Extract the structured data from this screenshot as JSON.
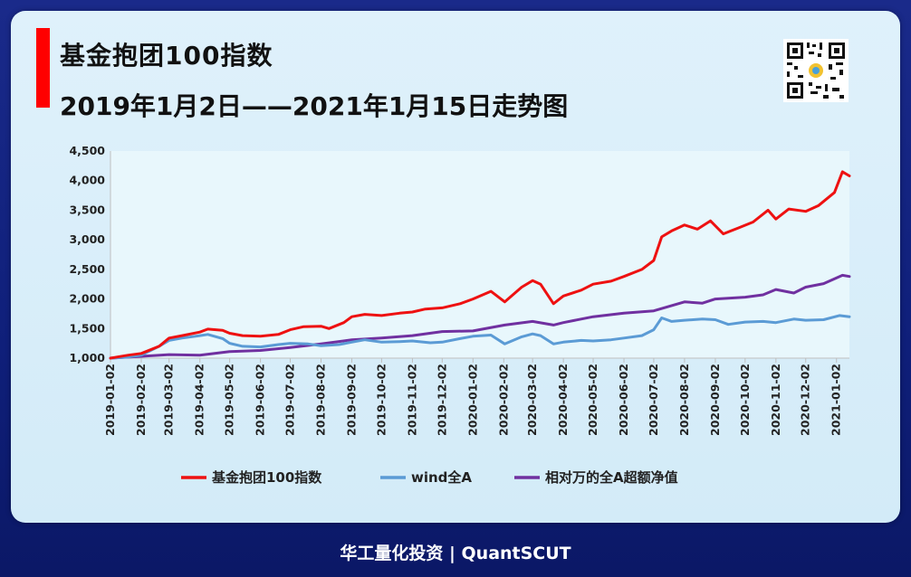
{
  "header": {
    "title": "基金抱团100指数",
    "subtitle": "2019年1月2日——2021年1月15日走势图"
  },
  "footer": {
    "text": "华工量化投资 | QuantSCUT"
  },
  "colors": {
    "series1": "#ee1111",
    "series2": "#5b9bd5",
    "series3": "#7030a0"
  },
  "chart_data": {
    "type": "line",
    "ylim": [
      1000,
      4500
    ],
    "y_ticks": [
      1000,
      1500,
      2000,
      2500,
      3000,
      3500,
      4000,
      4500
    ],
    "y_tick_labels": [
      "1,000",
      "1,500",
      "2,000",
      "2,500",
      "3,000",
      "3,500",
      "4,000",
      "4,500"
    ],
    "x_tick_labels": [
      "2019-01-02",
      "2019-02-02",
      "2019-03-02",
      "2019-04-02",
      "2019-05-02",
      "2019-06-02",
      "2019-07-02",
      "2019-08-02",
      "2019-09-02",
      "2019-10-02",
      "2019-11-02",
      "2019-12-02",
      "2020-01-02",
      "2020-02-02",
      "2020-03-02",
      "2020-04-02",
      "2020-05-02",
      "2020-06-02",
      "2020-07-02",
      "2020-08-02",
      "2020-09-02",
      "2020-10-02",
      "2020-11-02",
      "2020-12-02",
      "2021-01-02"
    ],
    "xlim": [
      "2019-01-02",
      "2021-01-15"
    ],
    "legend_position": "bottom",
    "grid": false,
    "series": [
      {
        "name": "基金抱团100指数",
        "points": [
          [
            "2019-01-02",
            1000
          ],
          [
            "2019-01-20",
            1050
          ],
          [
            "2019-02-02",
            1080
          ],
          [
            "2019-02-20",
            1200
          ],
          [
            "2019-03-02",
            1340
          ],
          [
            "2019-03-15",
            1380
          ],
          [
            "2019-04-02",
            1440
          ],
          [
            "2019-04-10",
            1490
          ],
          [
            "2019-04-25",
            1470
          ],
          [
            "2019-05-02",
            1420
          ],
          [
            "2019-05-15",
            1380
          ],
          [
            "2019-06-02",
            1370
          ],
          [
            "2019-06-20",
            1400
          ],
          [
            "2019-07-02",
            1480
          ],
          [
            "2019-07-15",
            1530
          ],
          [
            "2019-08-02",
            1540
          ],
          [
            "2019-08-10",
            1500
          ],
          [
            "2019-08-25",
            1600
          ],
          [
            "2019-09-02",
            1700
          ],
          [
            "2019-09-15",
            1740
          ],
          [
            "2019-10-02",
            1720
          ],
          [
            "2019-10-20",
            1760
          ],
          [
            "2019-11-02",
            1780
          ],
          [
            "2019-11-15",
            1830
          ],
          [
            "2019-12-02",
            1850
          ],
          [
            "2019-12-20",
            1920
          ],
          [
            "2020-01-02",
            2000
          ],
          [
            "2020-01-20",
            2130
          ],
          [
            "2020-02-03",
            1950
          ],
          [
            "2020-02-20",
            2200
          ],
          [
            "2020-03-02",
            2310
          ],
          [
            "2020-03-10",
            2250
          ],
          [
            "2020-03-23",
            1920
          ],
          [
            "2020-04-02",
            2050
          ],
          [
            "2020-04-20",
            2150
          ],
          [
            "2020-05-02",
            2250
          ],
          [
            "2020-05-20",
            2300
          ],
          [
            "2020-06-02",
            2380
          ],
          [
            "2020-06-20",
            2500
          ],
          [
            "2020-07-02",
            2650
          ],
          [
            "2020-07-10",
            3050
          ],
          [
            "2020-07-20",
            3150
          ],
          [
            "2020-08-02",
            3250
          ],
          [
            "2020-08-15",
            3180
          ],
          [
            "2020-08-28",
            3320
          ],
          [
            "2020-09-10",
            3100
          ],
          [
            "2020-09-25",
            3200
          ],
          [
            "2020-10-10",
            3300
          ],
          [
            "2020-10-25",
            3500
          ],
          [
            "2020-11-02",
            3350
          ],
          [
            "2020-11-15",
            3520
          ],
          [
            "2020-12-02",
            3480
          ],
          [
            "2020-12-15",
            3580
          ],
          [
            "2020-12-31",
            3800
          ],
          [
            "2021-01-08",
            4150
          ],
          [
            "2021-01-15",
            4080
          ]
        ]
      },
      {
        "name": "wind全A",
        "points": [
          [
            "2019-01-02",
            1000
          ],
          [
            "2019-01-20",
            1020
          ],
          [
            "2019-02-02",
            1050
          ],
          [
            "2019-02-20",
            1200
          ],
          [
            "2019-03-02",
            1300
          ],
          [
            "2019-03-15",
            1340
          ],
          [
            "2019-04-02",
            1380
          ],
          [
            "2019-04-10",
            1400
          ],
          [
            "2019-04-25",
            1330
          ],
          [
            "2019-05-02",
            1250
          ],
          [
            "2019-05-15",
            1200
          ],
          [
            "2019-06-02",
            1190
          ],
          [
            "2019-06-20",
            1230
          ],
          [
            "2019-07-02",
            1250
          ],
          [
            "2019-07-20",
            1240
          ],
          [
            "2019-08-02",
            1210
          ],
          [
            "2019-08-20",
            1230
          ],
          [
            "2019-09-02",
            1270
          ],
          [
            "2019-09-15",
            1310
          ],
          [
            "2019-10-02",
            1270
          ],
          [
            "2019-10-20",
            1280
          ],
          [
            "2019-11-02",
            1290
          ],
          [
            "2019-11-20",
            1260
          ],
          [
            "2019-12-02",
            1270
          ],
          [
            "2019-12-20",
            1330
          ],
          [
            "2020-01-02",
            1370
          ],
          [
            "2020-01-20",
            1390
          ],
          [
            "2020-02-03",
            1240
          ],
          [
            "2020-02-20",
            1360
          ],
          [
            "2020-03-02",
            1410
          ],
          [
            "2020-03-10",
            1380
          ],
          [
            "2020-03-23",
            1240
          ],
          [
            "2020-04-02",
            1270
          ],
          [
            "2020-04-20",
            1300
          ],
          [
            "2020-05-02",
            1290
          ],
          [
            "2020-05-20",
            1310
          ],
          [
            "2020-06-02",
            1340
          ],
          [
            "2020-06-20",
            1380
          ],
          [
            "2020-07-02",
            1480
          ],
          [
            "2020-07-10",
            1680
          ],
          [
            "2020-07-20",
            1620
          ],
          [
            "2020-08-02",
            1640
          ],
          [
            "2020-08-20",
            1660
          ],
          [
            "2020-09-02",
            1650
          ],
          [
            "2020-09-15",
            1570
          ],
          [
            "2020-10-02",
            1610
          ],
          [
            "2020-10-20",
            1620
          ],
          [
            "2020-11-02",
            1600
          ],
          [
            "2020-11-20",
            1660
          ],
          [
            "2020-12-02",
            1640
          ],
          [
            "2020-12-20",
            1650
          ],
          [
            "2021-01-05",
            1720
          ],
          [
            "2021-01-15",
            1700
          ]
        ]
      },
      {
        "name": "相对万的全A超额净值",
        "points": [
          [
            "2019-01-02",
            1000
          ],
          [
            "2019-02-02",
            1030
          ],
          [
            "2019-03-02",
            1060
          ],
          [
            "2019-04-02",
            1050
          ],
          [
            "2019-05-02",
            1110
          ],
          [
            "2019-06-02",
            1130
          ],
          [
            "2019-07-02",
            1180
          ],
          [
            "2019-08-02",
            1240
          ],
          [
            "2019-09-02",
            1310
          ],
          [
            "2019-10-02",
            1340
          ],
          [
            "2019-11-02",
            1380
          ],
          [
            "2019-12-02",
            1450
          ],
          [
            "2020-01-02",
            1460
          ],
          [
            "2020-02-03",
            1560
          ],
          [
            "2020-03-02",
            1620
          ],
          [
            "2020-03-23",
            1560
          ],
          [
            "2020-04-02",
            1600
          ],
          [
            "2020-05-02",
            1700
          ],
          [
            "2020-06-02",
            1760
          ],
          [
            "2020-07-02",
            1800
          ],
          [
            "2020-08-02",
            1950
          ],
          [
            "2020-08-20",
            1930
          ],
          [
            "2020-09-02",
            2000
          ],
          [
            "2020-10-02",
            2030
          ],
          [
            "2020-10-20",
            2070
          ],
          [
            "2020-11-02",
            2160
          ],
          [
            "2020-11-20",
            2100
          ],
          [
            "2020-12-02",
            2200
          ],
          [
            "2020-12-20",
            2260
          ],
          [
            "2021-01-08",
            2400
          ],
          [
            "2021-01-15",
            2380
          ]
        ]
      }
    ]
  }
}
